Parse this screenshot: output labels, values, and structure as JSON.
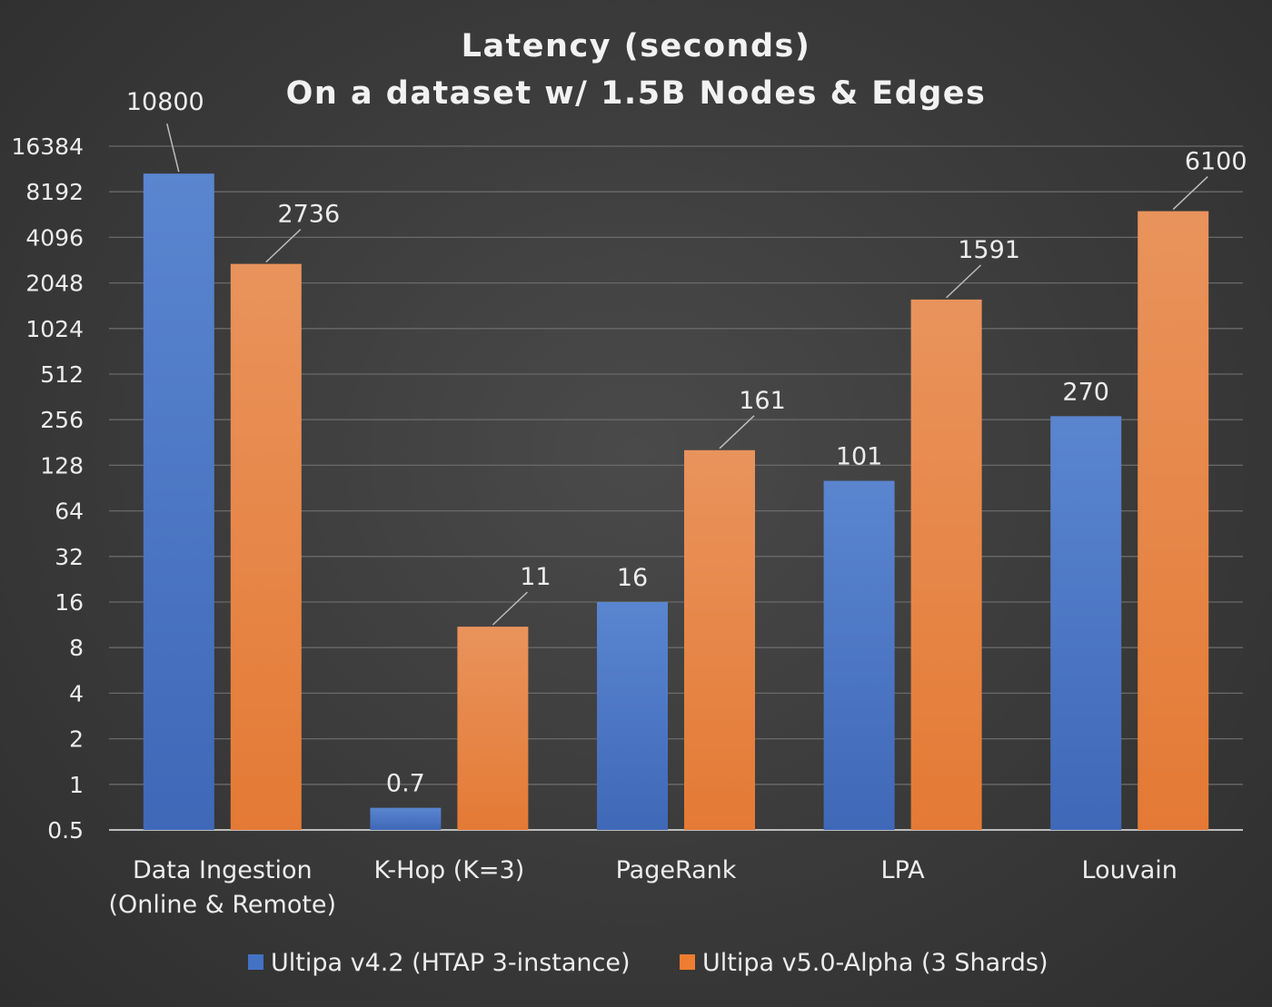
{
  "chart_data": {
    "type": "bar",
    "title": [
      "Latency (seconds)",
      "On  a dataset w/ 1.5B Nodes & Edges"
    ],
    "scale": "log2",
    "ylim": [
      0.5,
      16384
    ],
    "yticks": [
      "0.5",
      "1",
      "2",
      "4",
      "8",
      "16",
      "32",
      "64",
      "128",
      "256",
      "512",
      "1024",
      "2048",
      "4096",
      "8192",
      "16384"
    ],
    "grid": true,
    "legend_position": "bottom",
    "categories": [
      [
        "Data Ingestion",
        "(Online & Remote)"
      ],
      [
        "K-Hop (K=3)"
      ],
      [
        "PageRank"
      ],
      [
        "LPA"
      ],
      [
        "Louvain"
      ]
    ],
    "series": [
      {
        "name": "Ultipa v4.2 (HTAP 3-instance)",
        "color": "#4472c4",
        "values": [
          10800,
          0.7,
          16,
          101,
          270
        ],
        "labels": [
          "10800",
          "0.7",
          "16",
          "101",
          "270"
        ]
      },
      {
        "name": "Ultipa v5.0-Alpha (3 Shards)",
        "color": "#ed7d31",
        "values": [
          2736,
          11,
          161,
          1591,
          6100
        ],
        "labels": [
          "2736",
          "11",
          "161",
          "1591",
          "6100"
        ]
      }
    ]
  }
}
